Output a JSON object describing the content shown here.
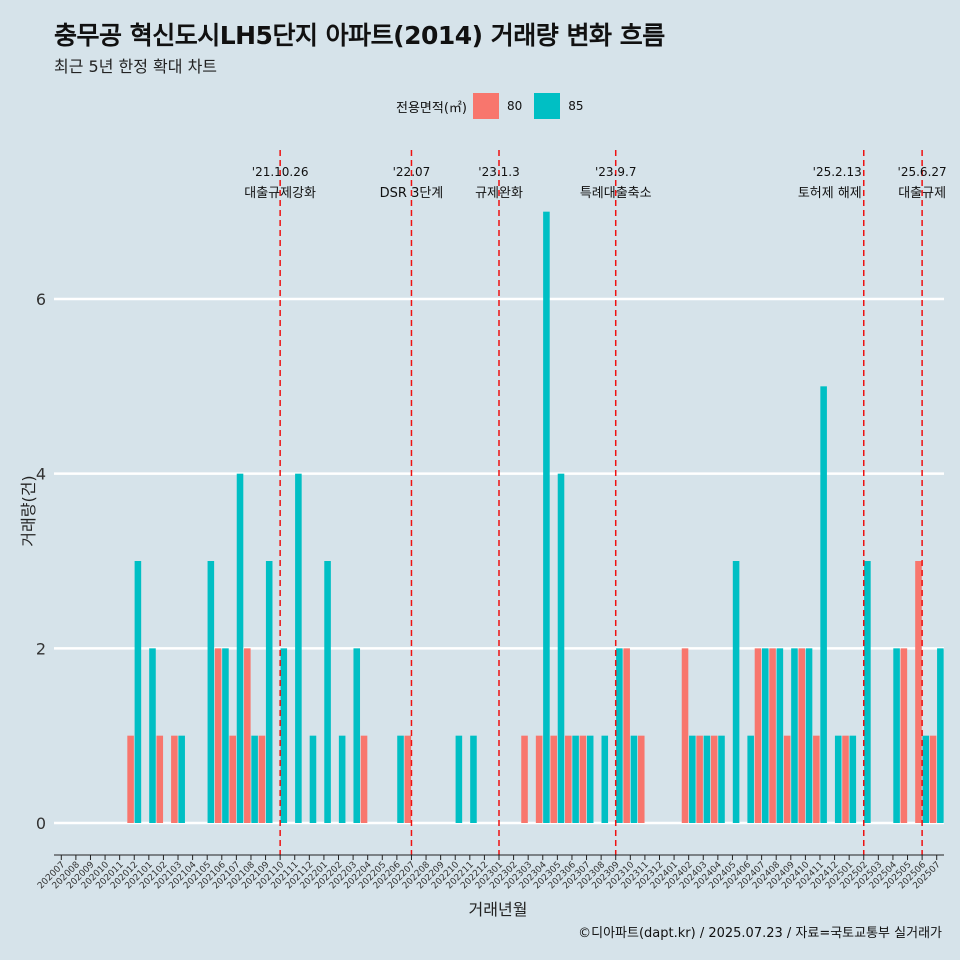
{
  "header": {
    "title": "충무공 혁신도시LH5단지 아파트(2014) 거래량 변화 흐름",
    "subtitle": "최근 5년 한정 확대 차트"
  },
  "legend": {
    "title": "전용면적(㎡)",
    "items": [
      {
        "label": "80",
        "color": "#f8766d"
      },
      {
        "label": "85",
        "color": "#00bfc4"
      }
    ]
  },
  "caption": "©디아파트(dapt.kr) / 2025.07.23 / 자료=국토교통부 실거래가",
  "chart_data": {
    "type": "bar",
    "xlabel": "거래년월",
    "ylabel": "거래량(건)",
    "ylim": [
      0,
      7
    ],
    "yticks": [
      0,
      2,
      4,
      6
    ],
    "grid": true,
    "legend_position": "top",
    "categories": [
      "202007",
      "202008",
      "202009",
      "202010",
      "202011",
      "202012",
      "202101",
      "202102",
      "202103",
      "202104",
      "202105",
      "202106",
      "202107",
      "202108",
      "202109",
      "202110",
      "202111",
      "202112",
      "202201",
      "202202",
      "202203",
      "202204",
      "202205",
      "202206",
      "202207",
      "202208",
      "202209",
      "202210",
      "202211",
      "202212",
      "202301",
      "202302",
      "202303",
      "202304",
      "202305",
      "202306",
      "202307",
      "202308",
      "202309",
      "202310",
      "202311",
      "202312",
      "202401",
      "202402",
      "202403",
      "202404",
      "202405",
      "202406",
      "202407",
      "202408",
      "202409",
      "202410",
      "202411",
      "202412",
      "202501",
      "202502",
      "202503",
      "202504",
      "202505",
      "202506",
      "202507"
    ],
    "series": [
      {
        "name": "80",
        "color": "#f8766d",
        "values": [
          0,
          0,
          0,
          0,
          0,
          1,
          0,
          1,
          1,
          0,
          0,
          2,
          1,
          2,
          1,
          0,
          0,
          0,
          0,
          0,
          0,
          1,
          0,
          0,
          1,
          0,
          0,
          0,
          0,
          0,
          0,
          0,
          1,
          1,
          1,
          1,
          1,
          0,
          0,
          2,
          1,
          0,
          0,
          2,
          1,
          1,
          0,
          0,
          2,
          2,
          1,
          2,
          1,
          0,
          1,
          0,
          0,
          0,
          2,
          3,
          1
        ]
      },
      {
        "name": "85",
        "color": "#00bfc4",
        "values": [
          0,
          0,
          0,
          0,
          0,
          3,
          2,
          0,
          1,
          0,
          3,
          2,
          4,
          1,
          3,
          2,
          4,
          1,
          3,
          1,
          2,
          0,
          0,
          1,
          0,
          0,
          0,
          1,
          1,
          0,
          0,
          0,
          0,
          7,
          4,
          1,
          1,
          1,
          2,
          1,
          0,
          0,
          0,
          1,
          1,
          1,
          3,
          1,
          2,
          2,
          2,
          2,
          5,
          1,
          1,
          3,
          0,
          2,
          0,
          1,
          2
        ]
      }
    ],
    "events": [
      {
        "x": "202110",
        "date": "'21.10.26",
        "label": "대출규제강화",
        "align": "center"
      },
      {
        "x": "202207",
        "date": "'22.07",
        "label": "DSR 3단계",
        "align": "center"
      },
      {
        "x": "202301",
        "date": "'23.1.3",
        "label": "규제완화",
        "align": "center"
      },
      {
        "x": "202309",
        "date": "'23.9.7",
        "label": "특례대출축소",
        "align": "center"
      },
      {
        "x": "202502",
        "date": "'25.2.13",
        "label": "토허제 해제",
        "align": "end"
      },
      {
        "x": "202506",
        "date": "'25.6.27",
        "label": "대출규제",
        "align": "center"
      }
    ]
  }
}
